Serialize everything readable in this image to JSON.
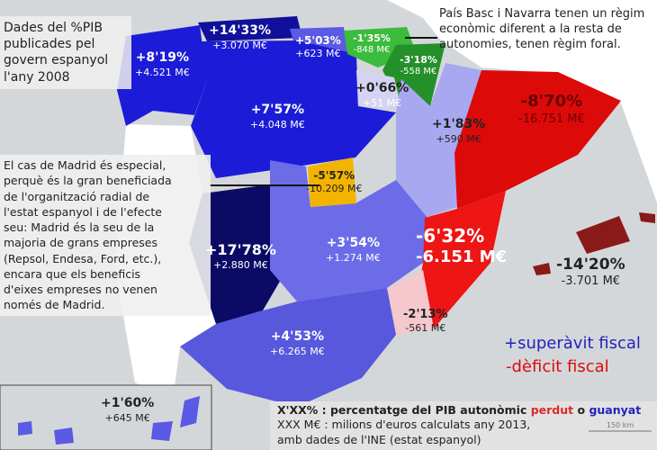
{
  "notes": {
    "top_left": [
      "Dades del %PIB",
      "publicades pel",
      "govern espanyol",
      "l'any 2008"
    ],
    "top_right": [
      "País Basc i Navarra tenen un règim",
      "econòmic diferent a la resta de",
      "autonomies, tenen règim foral."
    ],
    "madrid": [
      "El cas de Madrid és especial,",
      "perquè és la gran beneficiada",
      "de l'organització radial de",
      "l'estat espanyol i de l'efecte",
      "seu: Madrid és la seu de la",
      "majoria de grans empreses",
      "(Repsol, Endesa, Ford, etc.),",
      "encara que els beneficis",
      "d'eixes empreses no venen",
      "només de Madrid."
    ]
  },
  "regions": [
    {
      "id": "galicia",
      "pct": "+8'19%",
      "me": "+4.521 M€",
      "color": "#1c1cd8"
    },
    {
      "id": "asturias",
      "pct": "+14'33%",
      "me": "+3.070 M€",
      "color": "#10109a"
    },
    {
      "id": "cantabria",
      "pct": "+5'03%",
      "me": "+623 M€",
      "color": "#5a5ae4"
    },
    {
      "id": "pais-basc",
      "pct": "-1'35%",
      "me": "-848 M€",
      "color": "#3cbc3c"
    },
    {
      "id": "navarra",
      "pct": "-3'18%",
      "me": "-558 M€",
      "color": "#23902a"
    },
    {
      "id": "la-rioja",
      "pct": "+0'66%",
      "me": "+51 M€",
      "color": "#d4d4f2"
    },
    {
      "id": "castella-lleo",
      "pct": "+7'57%",
      "me": "+4.048 M€",
      "color": "#1c1cd8"
    },
    {
      "id": "arago",
      "pct": "+1'83%",
      "me": "+590 M€",
      "color": "#a8a8f0"
    },
    {
      "id": "catalunya",
      "pct": "-8'70%",
      "me": "-16.751 M€",
      "color": "#dd0a0a"
    },
    {
      "id": "madrid",
      "pct": "-5'57%",
      "me": "-10.209 M€",
      "color": "#f2b400"
    },
    {
      "id": "extremadura",
      "pct": "+17'78%",
      "me": "+2.880 M€",
      "color": "#0b0b66"
    },
    {
      "id": "castella-la-manxa",
      "pct": "+3'54%",
      "me": "+1.274 M€",
      "color": "#6c6ce8"
    },
    {
      "id": "pais-valencia",
      "pct": "-6'32%",
      "me": "-6.151 M€",
      "color": "#ee1515"
    },
    {
      "id": "murcia",
      "pct": "-2'13%",
      "me": "-561 M€",
      "color": "#f4c8cc"
    },
    {
      "id": "andalusia",
      "pct": "+4'53%",
      "me": "+6.265 M€",
      "color": "#5858dc"
    },
    {
      "id": "balears",
      "pct": "-14'20%",
      "me": "-3.701 M€",
      "color": "#8a1a1a"
    },
    {
      "id": "canaries",
      "pct": "+1'60%",
      "me": "+645 M€",
      "color": "#5a5ae4"
    }
  ],
  "legend": {
    "surplus": "+superàvit fiscal",
    "surplus_color": "#2323b8",
    "deficit": "-dèficit fiscal",
    "deficit_color": "#dd0a0a",
    "line1_a": "X'XX% : percentatge del PIB autonòmic ",
    "line1_lost": "perdut",
    "line1_o": " o ",
    "line1_won": "guanyat",
    "line2": "XXX M€ : milions d'euros calculats any 2013,",
    "line3": "amb dades de l'INE (estat espanyol)",
    "scale": "150 km"
  }
}
